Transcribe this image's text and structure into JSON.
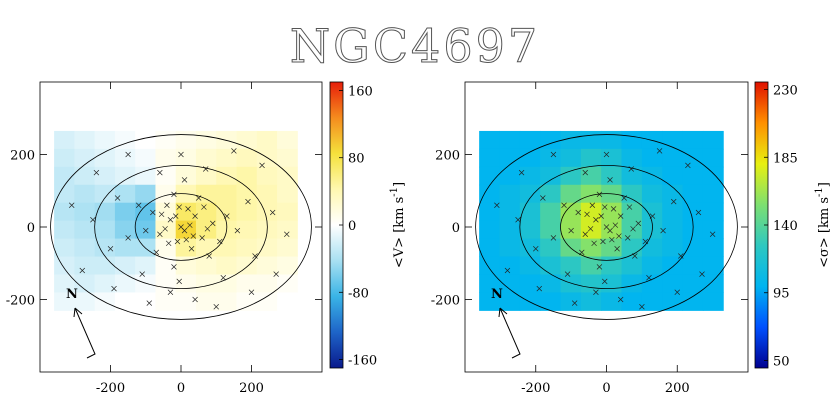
{
  "title": "NGC4697",
  "chart_data": [
    {
      "type": "heatmap",
      "colorbar_label": {
        "pre": "<V> [km s",
        "sup": "-1",
        "post": "]"
      },
      "north_label": "N",
      "xlim": [
        -400,
        400
      ],
      "ylim": [
        -400,
        400
      ],
      "xticks": [
        -200,
        0,
        200
      ],
      "yticks": [
        -200,
        0,
        200
      ],
      "clim": [
        -170,
        170
      ],
      "cticks": [
        -160,
        -80,
        0,
        80,
        160
      ],
      "colormap": [
        "#0a1a8c",
        "#1e64c8",
        "#3ab4e6",
        "#a8e0f2",
        "#ffffff",
        "#fff8b0",
        "#f5e13c",
        "#f58c1e",
        "#e61e0a"
      ],
      "grid_x": [
        -360,
        330
      ],
      "grid_y": [
        -230,
        265
      ],
      "map": [
        [
          -20,
          -15,
          -10,
          -5,
          0,
          5,
          10,
          15,
          20,
          25,
          30,
          20
        ],
        [
          -25,
          -20,
          -15,
          -10,
          -5,
          10,
          15,
          25,
          30,
          35,
          30,
          25
        ],
        [
          -30,
          -25,
          -20,
          -15,
          -10,
          5,
          20,
          30,
          40,
          45,
          35,
          30
        ],
        [
          -30,
          -35,
          -30,
          -40,
          -50,
          10,
          40,
          50,
          50,
          45,
          40,
          30
        ],
        [
          -35,
          -40,
          -45,
          -60,
          -70,
          20,
          70,
          60,
          50,
          45,
          40,
          35
        ],
        [
          -30,
          -35,
          -40,
          -55,
          -65,
          30,
          90,
          60,
          45,
          40,
          35,
          30
        ],
        [
          -25,
          -30,
          -35,
          -40,
          -40,
          10,
          50,
          40,
          40,
          35,
          30,
          25
        ],
        [
          -20,
          -25,
          -25,
          -20,
          -15,
          5,
          20,
          25,
          30,
          25,
          20,
          15
        ],
        [
          -15,
          -20,
          -15,
          -10,
          -5,
          5,
          10,
          15,
          15,
          10,
          10,
          5
        ],
        [
          -10,
          -10,
          -5,
          0,
          0,
          5,
          5,
          10,
          10,
          5,
          5,
          0
        ]
      ],
      "ellipses": [
        {
          "a": 370,
          "b": 255
        },
        {
          "a": 245,
          "b": 170
        },
        {
          "a": 130,
          "b": 92
        }
      ],
      "points": {
        "x": [
          -30,
          10,
          40,
          -60,
          20,
          -10,
          60,
          -80,
          90,
          0,
          -40,
          30,
          -100,
          110,
          -20,
          50,
          -120,
          130,
          -70,
          80,
          -150,
          160,
          -20,
          10,
          -180,
          190,
          -60,
          70,
          -200,
          210,
          -110,
          120,
          -250,
          260,
          -30,
          40,
          -240,
          230,
          -280,
          270,
          -150,
          150,
          -310,
          300,
          -90,
          100,
          -190,
          200,
          0,
          -5,
          -15,
          25,
          -45,
          35,
          -5,
          15,
          -55,
          65,
          -35,
          75
        ],
        "y": [
          20,
          -10,
          30,
          -20,
          50,
          -40,
          -30,
          40,
          10,
          0,
          60,
          -60,
          -10,
          -40,
          90,
          80,
          60,
          30,
          -70,
          -80,
          -30,
          -10,
          -110,
          130,
          80,
          70,
          150,
          160,
          -60,
          -80,
          -130,
          -140,
          20,
          40,
          -180,
          -200,
          150,
          170,
          -120,
          -130,
          200,
          210,
          60,
          -20,
          -210,
          -220,
          -170,
          -180,
          200,
          -150,
          30,
          5,
          -5,
          -25,
          55,
          -35,
          35,
          55,
          -45,
          -5
        ]
      }
    },
    {
      "type": "heatmap",
      "colorbar_label": {
        "pre": "<σ> [km s",
        "sup": "-1",
        "post": "]"
      },
      "north_label": "N",
      "xlim": [
        -400,
        400
      ],
      "ylim": [
        -400,
        400
      ],
      "xticks": [
        -200,
        0,
        200
      ],
      "yticks": [
        -200,
        0,
        200
      ],
      "clim": [
        45,
        235
      ],
      "cticks": [
        50,
        95,
        140,
        185,
        230
      ],
      "colormap": [
        "#00008f",
        "#0050ff",
        "#00b4f0",
        "#2ec8c0",
        "#7ee070",
        "#e8f010",
        "#ff9000",
        "#e01000"
      ],
      "grid_x": [
        -360,
        330
      ],
      "grid_y": [
        -230,
        265
      ],
      "map": [
        [
          100,
          100,
          100,
          100,
          105,
          105,
          105,
          100,
          100,
          100,
          100,
          100
        ],
        [
          100,
          100,
          100,
          105,
          110,
          120,
          115,
          105,
          100,
          100,
          100,
          100
        ],
        [
          100,
          100,
          105,
          110,
          125,
          135,
          125,
          110,
          105,
          100,
          100,
          100
        ],
        [
          100,
          105,
          110,
          125,
          145,
          155,
          145,
          125,
          110,
          105,
          100,
          100
        ],
        [
          100,
          105,
          115,
          135,
          160,
          175,
          160,
          135,
          115,
          105,
          100,
          100
        ],
        [
          100,
          105,
          115,
          135,
          160,
          175,
          160,
          135,
          115,
          105,
          100,
          100
        ],
        [
          100,
          105,
          110,
          125,
          145,
          155,
          145,
          125,
          110,
          105,
          100,
          100
        ],
        [
          100,
          100,
          105,
          115,
          125,
          135,
          125,
          115,
          105,
          100,
          100,
          100
        ],
        [
          100,
          100,
          100,
          105,
          115,
          120,
          115,
          105,
          100,
          100,
          100,
          100
        ],
        [
          100,
          100,
          100,
          100,
          105,
          110,
          105,
          100,
          100,
          100,
          100,
          100
        ]
      ],
      "ellipses": [
        {
          "a": 370,
          "b": 255
        },
        {
          "a": 245,
          "b": 170
        },
        {
          "a": 130,
          "b": 92
        }
      ],
      "points": {
        "x": [
          -30,
          10,
          40,
          -60,
          20,
          -10,
          60,
          -80,
          90,
          0,
          -40,
          30,
          -100,
          110,
          -20,
          50,
          -120,
          130,
          -70,
          80,
          -150,
          160,
          -20,
          10,
          -180,
          190,
          -60,
          70,
          -200,
          210,
          -110,
          120,
          -250,
          260,
          -30,
          40,
          -240,
          230,
          -280,
          270,
          -150,
          150,
          -310,
          300,
          -90,
          100,
          -190,
          200,
          0,
          -5,
          -15,
          25,
          -45,
          35,
          -5,
          15,
          -55,
          65,
          -35,
          75
        ],
        "y": [
          20,
          -10,
          30,
          -20,
          50,
          -40,
          -30,
          40,
          10,
          0,
          60,
          -60,
          -10,
          -40,
          90,
          80,
          60,
          30,
          -70,
          -80,
          -30,
          -10,
          -110,
          130,
          80,
          70,
          150,
          160,
          -60,
          -80,
          -130,
          -140,
          20,
          40,
          -180,
          -200,
          150,
          170,
          -120,
          -130,
          200,
          210,
          60,
          -20,
          -210,
          -220,
          -170,
          -180,
          200,
          -150,
          30,
          5,
          -5,
          -25,
          55,
          -35,
          35,
          55,
          -45,
          -5
        ]
      }
    }
  ]
}
